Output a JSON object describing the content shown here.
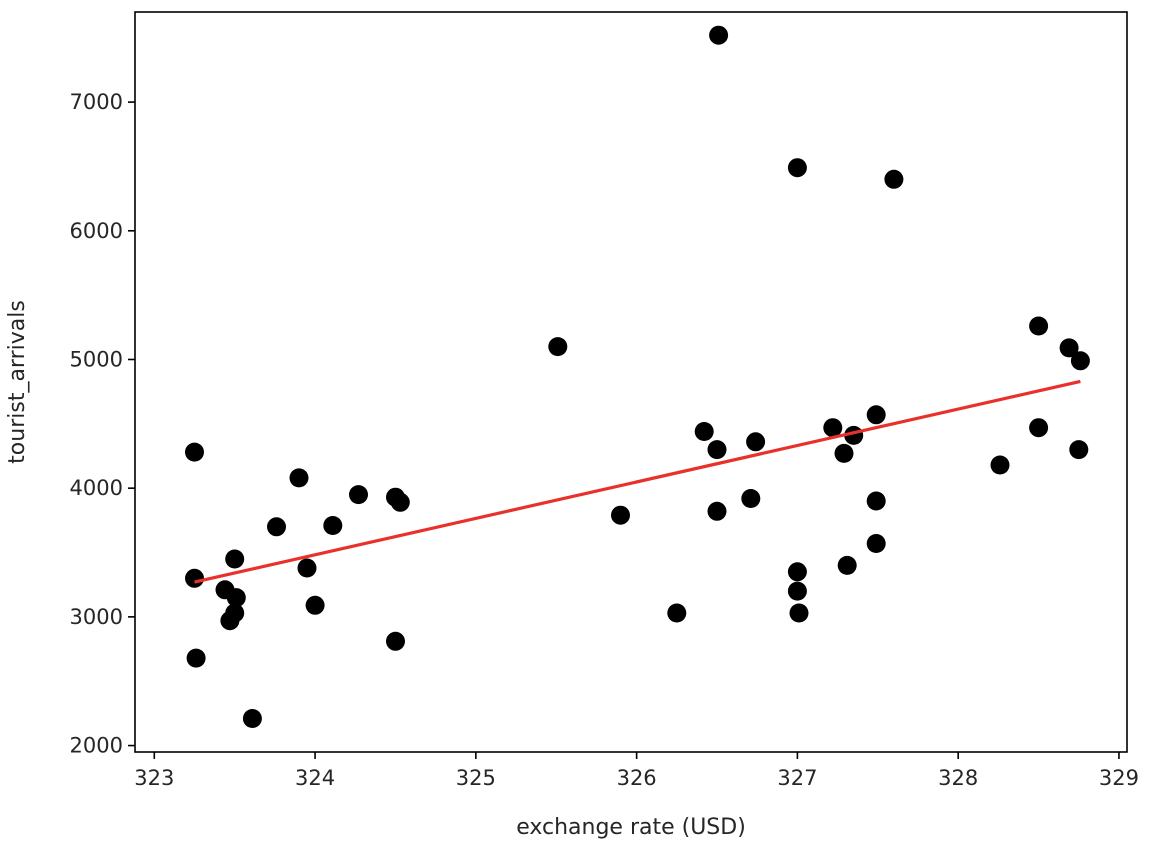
{
  "chart_data": {
    "type": "scatter",
    "title": "",
    "xlabel": "exchange rate (USD)",
    "ylabel": "tourist_arrivals",
    "xlim": [
      322.88,
      329.05
    ],
    "ylim": [
      1950,
      7700
    ],
    "x_ticks": [
      323,
      324,
      325,
      326,
      327,
      328,
      329
    ],
    "y_ticks": [
      2000,
      3000,
      4000,
      5000,
      6000,
      7000
    ],
    "grid": false,
    "legend": "none",
    "colors": {
      "points": "#000000",
      "fit_line": "#e8312a",
      "axes": "#000000"
    },
    "series": [
      {
        "values": [
          {
            "x": 323.25,
            "y": 4280
          },
          {
            "x": 323.25,
            "y": 3300
          },
          {
            "x": 323.26,
            "y": 2680
          },
          {
            "x": 323.44,
            "y": 3210
          },
          {
            "x": 323.47,
            "y": 2970
          },
          {
            "x": 323.5,
            "y": 3030
          },
          {
            "x": 323.51,
            "y": 3150
          },
          {
            "x": 323.5,
            "y": 3450
          },
          {
            "x": 323.61,
            "y": 2210
          },
          {
            "x": 323.76,
            "y": 3700
          },
          {
            "x": 323.9,
            "y": 4080
          },
          {
            "x": 323.95,
            "y": 3380
          },
          {
            "x": 324.0,
            "y": 3090
          },
          {
            "x": 324.11,
            "y": 3710
          },
          {
            "x": 324.27,
            "y": 3950
          },
          {
            "x": 324.5,
            "y": 3930
          },
          {
            "x": 324.53,
            "y": 3890
          },
          {
            "x": 324.5,
            "y": 2810
          },
          {
            "x": 325.51,
            "y": 5100
          },
          {
            "x": 325.9,
            "y": 3790
          },
          {
            "x": 326.25,
            "y": 3030
          },
          {
            "x": 326.42,
            "y": 4440
          },
          {
            "x": 326.5,
            "y": 4300
          },
          {
            "x": 326.5,
            "y": 3820
          },
          {
            "x": 326.51,
            "y": 7520
          },
          {
            "x": 326.71,
            "y": 3920
          },
          {
            "x": 326.74,
            "y": 4360
          },
          {
            "x": 327.0,
            "y": 6490
          },
          {
            "x": 327.0,
            "y": 3350
          },
          {
            "x": 327.0,
            "y": 3200
          },
          {
            "x": 327.01,
            "y": 3030
          },
          {
            "x": 327.22,
            "y": 4470
          },
          {
            "x": 327.29,
            "y": 4270
          },
          {
            "x": 327.31,
            "y": 3400
          },
          {
            "x": 327.35,
            "y": 4410
          },
          {
            "x": 327.49,
            "y": 4570
          },
          {
            "x": 327.49,
            "y": 3900
          },
          {
            "x": 327.49,
            "y": 3570
          },
          {
            "x": 327.6,
            "y": 6400
          },
          {
            "x": 328.26,
            "y": 4180
          },
          {
            "x": 328.5,
            "y": 5260
          },
          {
            "x": 328.5,
            "y": 4470
          },
          {
            "x": 328.69,
            "y": 5090
          },
          {
            "x": 328.76,
            "y": 4990
          },
          {
            "x": 328.75,
            "y": 4300
          }
        ]
      }
    ],
    "fit_line": {
      "x": [
        323.25,
        328.76
      ],
      "y": [
        3270,
        4830
      ]
    }
  }
}
